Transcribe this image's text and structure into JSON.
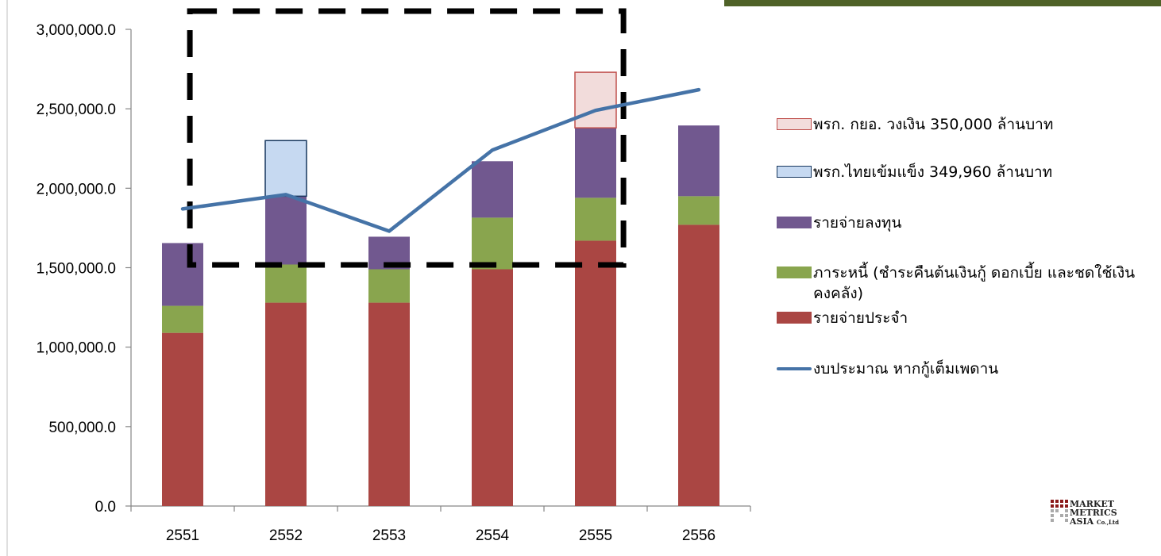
{
  "chart_data": {
    "type": "bar",
    "stacked": true,
    "categories": [
      "2551",
      "2552",
      "2553",
      "2554",
      "2555",
      "2556"
    ],
    "ylim": [
      0,
      3000000
    ],
    "yticks": [
      "0.0",
      "500,000.0",
      "1,000,000.0",
      "1,500,000.0",
      "2,000,000.0",
      "2,500,000.0",
      "3,000,000.0"
    ],
    "series": [
      {
        "name": "รายจ่ายประจำ",
        "kind": "bar",
        "color": "#AA4643",
        "values": [
          1090000,
          1280000,
          1280000,
          1490000,
          1670000,
          1770000
        ]
      },
      {
        "name": "ภาระหนี้ (ชำระคืนต้นเงินกู้ ดอกเบี้ย และชดใช้เงินคงคลัง)",
        "kind": "bar",
        "color": "#89A54E",
        "values": [
          170000,
          240000,
          210000,
          325000,
          270000,
          180000
        ]
      },
      {
        "name": "รายจ่ายลงทุน",
        "kind": "bar",
        "color": "#71588F",
        "values": [
          395000,
          430000,
          205000,
          355000,
          440000,
          445000
        ]
      },
      {
        "name": "พรก.ไทยเข้มแข็ง 349,960 ล้านบาท",
        "kind": "bar",
        "color": "#C6D9F1",
        "border": "#17375E",
        "values": [
          0,
          349960,
          0,
          0,
          0,
          0
        ]
      },
      {
        "name": "พรก. กยอ. วงเงิน 350,000 ล้านบาท",
        "kind": "bar",
        "color": "#F2DCDB",
        "border": "#C0504D",
        "values": [
          0,
          0,
          0,
          0,
          350000,
          0
        ]
      },
      {
        "name": "งบประมาณ หากกู้เต็มเพดาน",
        "kind": "line",
        "color": "#4573A7",
        "values": [
          1870000,
          1960000,
          1730000,
          2240000,
          2490000,
          2620000
        ]
      }
    ],
    "legend_position": "right",
    "grid": false,
    "annotation": "dashed box over 2552–2555 (black dashed rectangle)"
  },
  "logo": {
    "lines": [
      "MARKET",
      "METRICS",
      "ASIA"
    ],
    "suffix": "Co.,Ltd",
    "color": "#8B1A1A"
  }
}
